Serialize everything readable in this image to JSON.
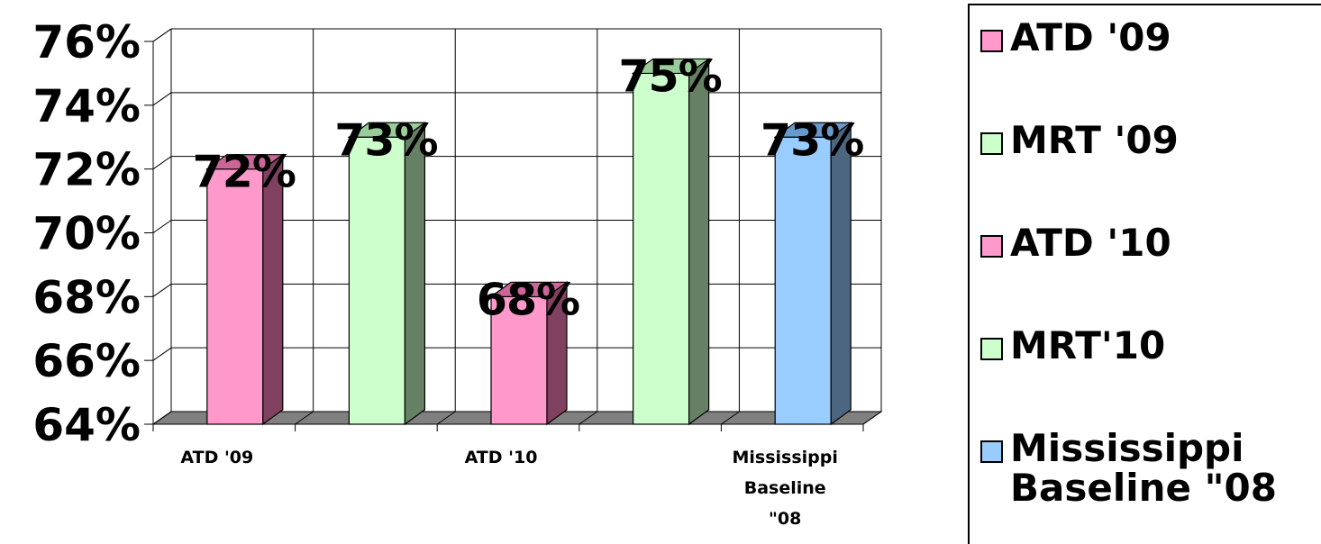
{
  "chart_data": {
    "type": "bar",
    "bars": [
      {
        "series": "ATD '09",
        "value": 72,
        "label": "72%",
        "color": "#ff99cc",
        "side": "#804060",
        "top": "#cc6699"
      },
      {
        "series": "MRT '09",
        "value": 73,
        "label": "73%",
        "color": "#ccffcc",
        "side": "#668066",
        "top": "#99cc99"
      },
      {
        "series": "ATD '10",
        "value": 68,
        "label": "68%",
        "color": "#ff99cc",
        "side": "#804060",
        "top": "#cc6699"
      },
      {
        "series": "MRT'10",
        "value": 75,
        "label": "75%",
        "color": "#ccffcc",
        "side": "#668066",
        "top": "#99cc99"
      },
      {
        "series": "Mississippi Baseline \"08",
        "value": 73,
        "label": "73%",
        "color": "#99ccff",
        "side": "#4d6680",
        "top": "#6699cc"
      }
    ],
    "x_tick_labels": [
      {
        "slot": 0,
        "text": "ATD '09"
      },
      {
        "slot": 2,
        "text": "ATD '10"
      },
      {
        "slot": 4,
        "text": "Mississippi\nBaseline\n\"08"
      }
    ],
    "y_ticks": [
      "64%",
      "66%",
      "68%",
      "70%",
      "72%",
      "74%",
      "76%"
    ],
    "ylim": [
      64,
      76
    ],
    "grid": true,
    "three_d": true,
    "floor_color": "#808080",
    "legend_position": "right",
    "legend": [
      {
        "label": "ATD '09",
        "color": "#ff99cc"
      },
      {
        "label": "MRT '09",
        "color": "#ccffcc"
      },
      {
        "label": "ATD '10",
        "color": "#ff99cc"
      },
      {
        "label": "MRT'10",
        "color": "#ccffcc"
      },
      {
        "label": "Mississippi\nBaseline \"08",
        "color": "#99ccff"
      }
    ]
  }
}
